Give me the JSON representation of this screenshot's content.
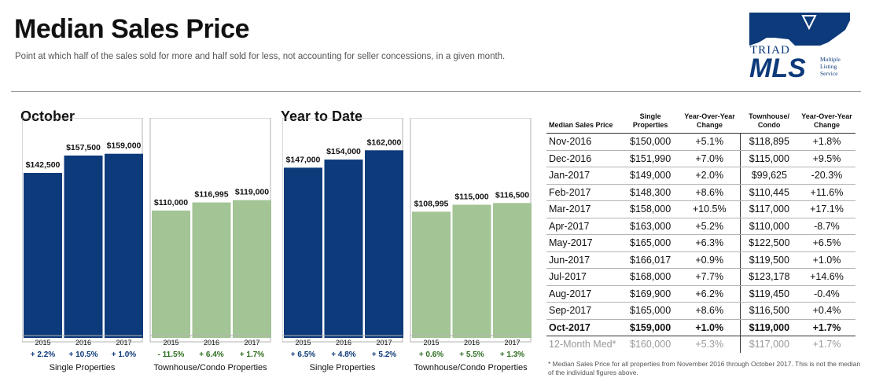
{
  "header": {
    "title": "Median Sales Price",
    "subtitle": "Point at which half of the sales sold for more and half sold for less, not accounting for seller concessions, in a given month."
  },
  "logo": {
    "top": "TRIAD",
    "main": "MLS",
    "line1": "Multiple",
    "line2": "Listing",
    "line3": "Service"
  },
  "colors": {
    "single": "#0d3a7a",
    "townhouse": "#a3c495",
    "positive": "#0d3a7a",
    "townhouse_change": "#2e6e1f"
  },
  "chart_data": [
    {
      "type": "bar",
      "title": "October",
      "groups": [
        {
          "label": "Single Properties",
          "categories": [
            "2015",
            "2016",
            "2017"
          ],
          "values": [
            142500,
            157500,
            159000
          ],
          "value_labels": [
            "$142,500",
            "$157,500",
            "$159,000"
          ],
          "changes": [
            "+ 2.2%",
            "+ 10.5%",
            "+ 1.0%"
          ],
          "color": "#0d3a7a"
        },
        {
          "label": "Townhouse/Condo Properties",
          "categories": [
            "2015",
            "2016",
            "2017"
          ],
          "values": [
            110000,
            116995,
            119000
          ],
          "value_labels": [
            "$110,000",
            "$116,995",
            "$119,000"
          ],
          "changes": [
            "- 11.5%",
            "+ 6.4%",
            "+ 1.7%"
          ],
          "color": "#a3c495"
        }
      ]
    },
    {
      "type": "bar",
      "title": "Year to Date",
      "groups": [
        {
          "label": "Single Properties",
          "categories": [
            "2015",
            "2016",
            "2017"
          ],
          "values": [
            147000,
            154000,
            162000
          ],
          "value_labels": [
            "$147,000",
            "$154,000",
            "$162,000"
          ],
          "changes": [
            "+ 6.5%",
            "+ 4.8%",
            "+ 5.2%"
          ],
          "color": "#0d3a7a"
        },
        {
          "label": "Townhouse/Condo Properties",
          "categories": [
            "2015",
            "2016",
            "2017"
          ],
          "values": [
            108995,
            115000,
            116500
          ],
          "value_labels": [
            "$108,995",
            "$115,000",
            "$116,500"
          ],
          "changes": [
            "+ 0.6%",
            "+ 5.5%",
            "+ 1.3%"
          ],
          "color": "#a3c495"
        }
      ]
    }
  ],
  "table": {
    "headers": [
      "Median Sales Price",
      "Single Properties",
      "Year-Over-Year Change",
      "Townhouse/ Condo",
      "Year-Over-Year Change"
    ],
    "rows": [
      [
        "Nov-2016",
        "$150,000",
        "+5.1%",
        "$118,895",
        "+1.8%"
      ],
      [
        "Dec-2016",
        "$151,990",
        "+7.0%",
        "$115,000",
        "+9.5%"
      ],
      [
        "Jan-2017",
        "$149,000",
        "+2.0%",
        "$99,625",
        "-20.3%"
      ],
      [
        "Feb-2017",
        "$148,300",
        "+8.6%",
        "$110,445",
        "+11.6%"
      ],
      [
        "Mar-2017",
        "$158,000",
        "+10.5%",
        "$117,000",
        "+17.1%"
      ],
      [
        "Apr-2017",
        "$163,000",
        "+5.2%",
        "$110,000",
        "-8.7%"
      ],
      [
        "May-2017",
        "$165,000",
        "+6.3%",
        "$122,500",
        "+6.5%"
      ],
      [
        "Jun-2017",
        "$166,017",
        "+0.9%",
        "$119,500",
        "+1.0%"
      ],
      [
        "Jul-2017",
        "$168,000",
        "+7.7%",
        "$123,178",
        "+14.6%"
      ],
      [
        "Aug-2017",
        "$169,900",
        "+6.2%",
        "$119,450",
        "-0.4%"
      ],
      [
        "Sep-2017",
        "$165,000",
        "+8.6%",
        "$116,500",
        "+0.4%"
      ],
      [
        "Oct-2017",
        "$159,000",
        "+1.0%",
        "$119,000",
        "+1.7%"
      ]
    ],
    "median_row": [
      "12-Month Med*",
      "$160,000",
      "+5.3%",
      "$117,000",
      "+1.7%"
    ]
  },
  "footnote": "* Median Sales Price for all properties from November 2016 through October 2017. This is not the median of the individual figures above."
}
